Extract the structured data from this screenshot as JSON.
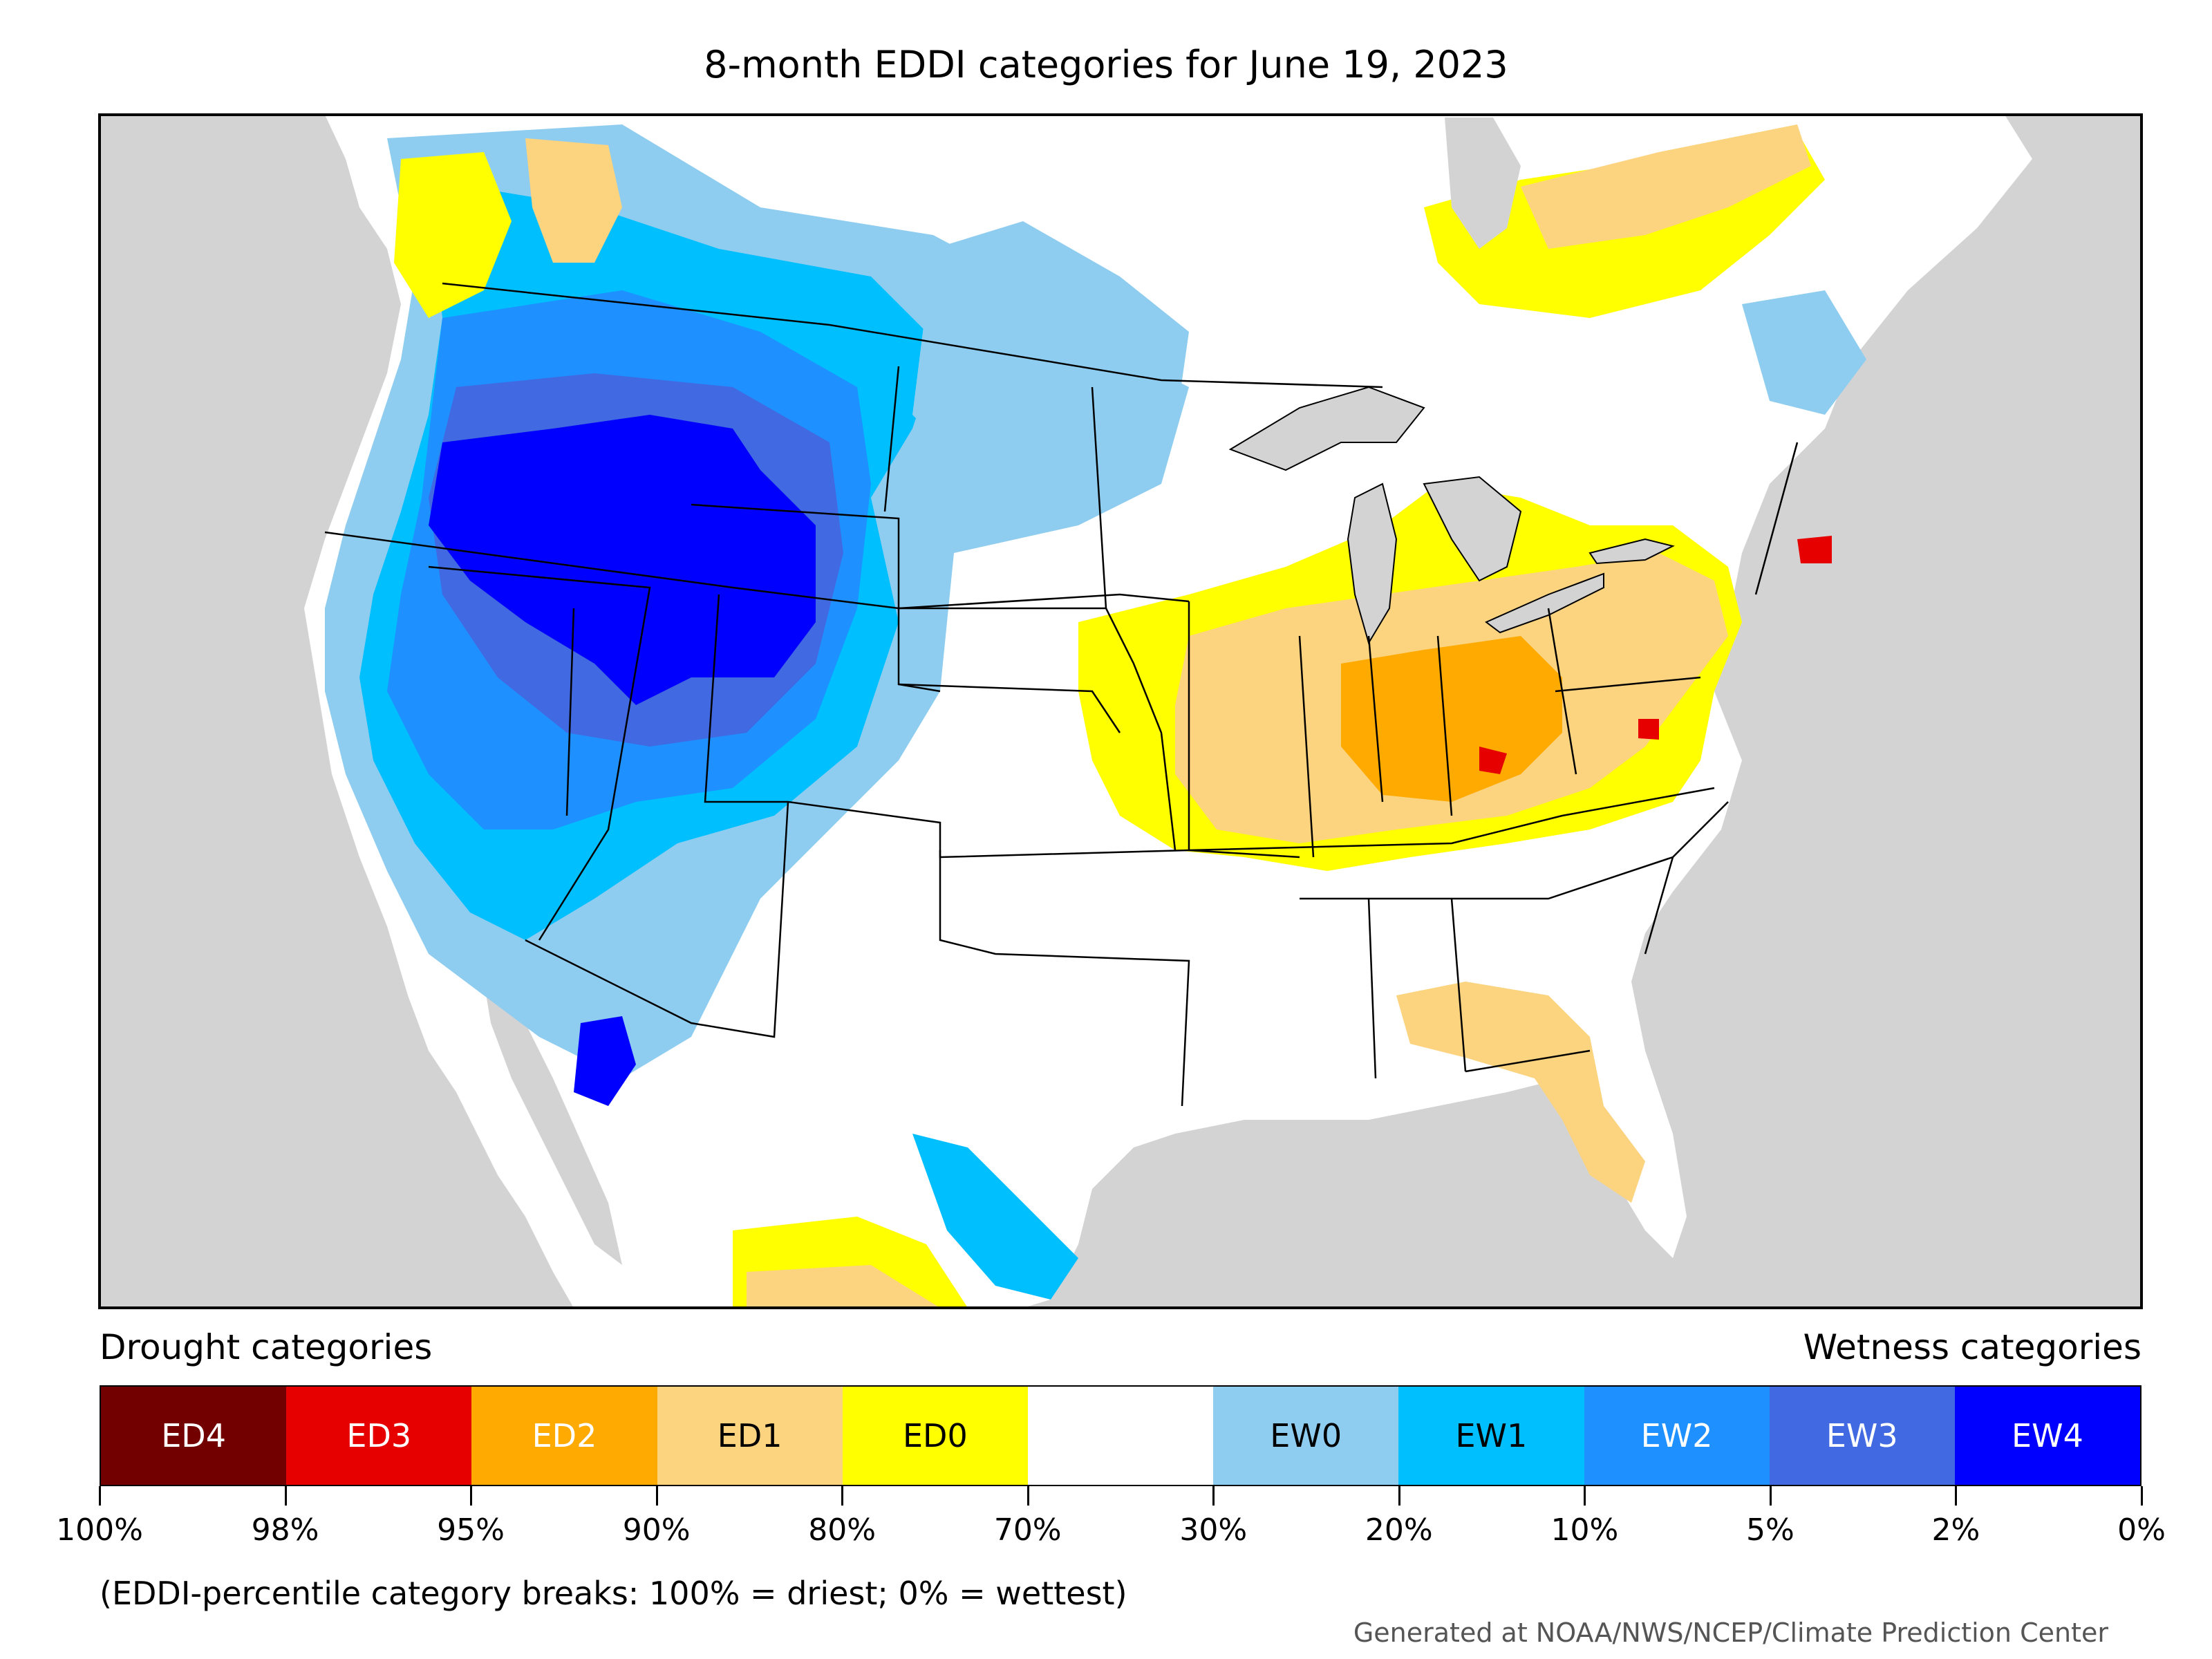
{
  "title": "8-month EDDI categories for June 19, 2023",
  "legend": {
    "drought_heading": "Drought categories",
    "wetness_heading": "Wetness categories",
    "categories": [
      {
        "label": "ED4",
        "color": "#730000",
        "text_color": "#ffffff"
      },
      {
        "label": "ED3",
        "color": "#e60000",
        "text_color": "#ffffff"
      },
      {
        "label": "ED2",
        "color": "#ffaa00",
        "text_color": "#ffffff"
      },
      {
        "label": "ED1",
        "color": "#fcd37f",
        "text_color": "#000000"
      },
      {
        "label": "ED0",
        "color": "#ffff00",
        "text_color": "#000000"
      },
      {
        "label": "",
        "color": "#ffffff",
        "text_color": "#000000"
      },
      {
        "label": "EW0",
        "color": "#8fcdf0",
        "text_color": "#000000"
      },
      {
        "label": "EW1",
        "color": "#00bfff",
        "text_color": "#000000"
      },
      {
        "label": "EW2",
        "color": "#1e90ff",
        "text_color": "#ffffff"
      },
      {
        "label": "EW3",
        "color": "#4169e1",
        "text_color": "#ffffff"
      },
      {
        "label": "EW4",
        "color": "#0000ff",
        "text_color": "#ffffff"
      }
    ],
    "tick_labels": [
      "100%",
      "98%",
      "95%",
      "90%",
      "80%",
      "70%",
      "30%",
      "20%",
      "10%",
      "5%",
      "2%",
      "0%"
    ]
  },
  "footnote": "(EDDI-percentile category breaks: 100% = driest; 0% = wettest)",
  "credit": "Generated at NOAA/NWS/NCEP/Climate Prediction Center",
  "colors": {
    "water_background": "#d3d3d3",
    "land_default": "#ffffff",
    "border": "#000000"
  }
}
